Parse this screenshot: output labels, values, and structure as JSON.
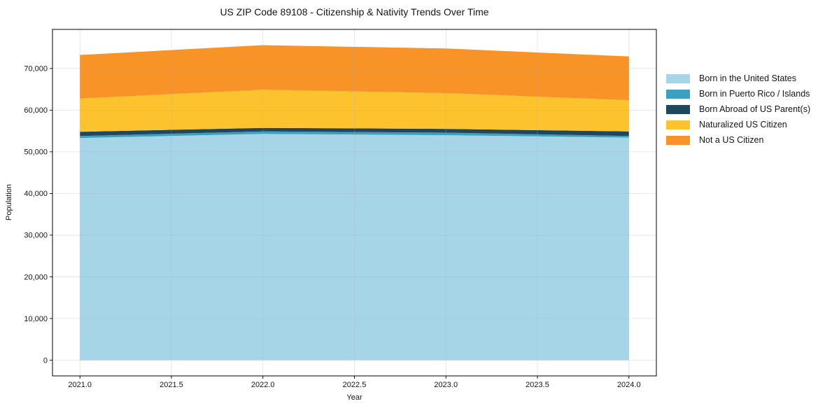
{
  "figure": {
    "title": "US ZIP Code 89108 - Citizenship & Nativity Trends Over Time"
  },
  "chart_data": {
    "type": "area",
    "stacked": true,
    "title": "US ZIP Code 89108 - Citizenship & Nativity Trends Over Time",
    "xlabel": "Year",
    "ylabel": "Population",
    "x": [
      2021,
      2022,
      2023,
      2024
    ],
    "series": [
      {
        "name": "Born in the United States",
        "color": "#a6d5e8",
        "values": [
          53300,
          54300,
          54000,
          53400
        ]
      },
      {
        "name": "Born in Puerto Rico / Islands",
        "color": "#3f9fc0",
        "values": [
          500,
          600,
          600,
          400
        ]
      },
      {
        "name": "Born Abroad of US Parent(s)",
        "color": "#20485c",
        "values": [
          1000,
          850,
          900,
          1100
        ]
      },
      {
        "name": "Naturalized US Citizen",
        "color": "#fdc32f",
        "values": [
          8000,
          9150,
          8600,
          7500
        ]
      },
      {
        "name": "Not a US Citizen",
        "color": "#f79327",
        "values": [
          10450,
          10700,
          10700,
          10500
        ]
      }
    ],
    "stack_totals": [
      73250,
      75600,
      74800,
      72900
    ],
    "xticks": [
      2021.0,
      2021.5,
      2022.0,
      2022.5,
      2023.0,
      2023.5,
      2024.0
    ],
    "xtick_labels": [
      "2021.0",
      "2021.5",
      "2022.0",
      "2022.5",
      "2023.0",
      "2023.5",
      "2024.0"
    ],
    "yticks": [
      0,
      10000,
      20000,
      30000,
      40000,
      50000,
      60000,
      70000
    ],
    "ytick_labels": [
      "0",
      "10,000",
      "20,000",
      "30,000",
      "40,000",
      "50,000",
      "60,000",
      "70,000"
    ],
    "xlim": [
      2020.85,
      2024.15
    ],
    "ylim": [
      -3780,
      79380
    ],
    "grid": true,
    "grid_color": "#b0b0b0",
    "axis_color": "#000000",
    "legend_position": "outside-right"
  }
}
